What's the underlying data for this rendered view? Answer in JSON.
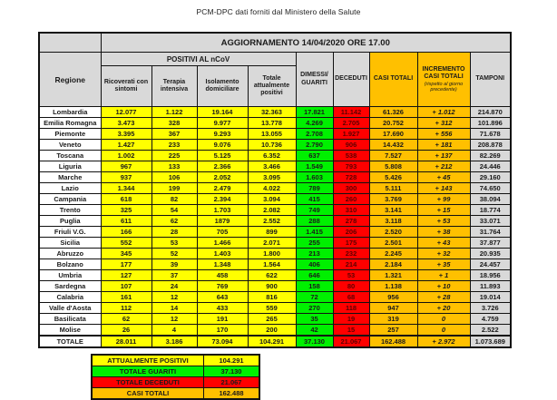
{
  "title": "PCM-DPC dati forniti dal Ministero della Salute",
  "colors": {
    "gray": "#D9D9D9",
    "yellow": "#FFFF00",
    "green": "#00F000",
    "red": "#FF0000",
    "orange": "#FFC000",
    "deceduti_text": "#5C0000"
  },
  "table": {
    "update_header": "AGGIORNAMENTO 14/04/2020 ORE 17.00",
    "headers": {
      "regione": "Regione",
      "positivi_group": "POSITIVI AL nCoV",
      "ricoverati": "Ricoverati con sintomi",
      "terapia": "Terapia intensiva",
      "isolamento": "Isolamento domiciliare",
      "totale_positivi": "Totale attualmente positivi",
      "dimessi": "DIMESSI/ GUARITI",
      "deceduti": "DECEDUTI",
      "casi_totali": "CASI TOTALI",
      "incremento": "INCREMENTO CASI TOTALI",
      "incremento_note": "(rispetto al giorno precedente)",
      "tamponi": "TAMPONI"
    },
    "rows": [
      {
        "region": "Lombardia",
        "cells": [
          "12.077",
          "1.122",
          "19.164",
          "32.363",
          "17.821",
          "11.142",
          "61.326",
          "+ 1.012",
          "214.870"
        ]
      },
      {
        "region": "Emilia Romagna",
        "cells": [
          "3.473",
          "328",
          "9.977",
          "13.778",
          "4.269",
          "2.705",
          "20.752",
          "+ 312",
          "101.896"
        ]
      },
      {
        "region": "Piemonte",
        "cells": [
          "3.395",
          "367",
          "9.293",
          "13.055",
          "2.708",
          "1.927",
          "17.690",
          "+ 556",
          "71.678"
        ]
      },
      {
        "region": "Veneto",
        "cells": [
          "1.427",
          "233",
          "9.076",
          "10.736",
          "2.790",
          "906",
          "14.432",
          "+ 181",
          "208.878"
        ]
      },
      {
        "region": "Toscana",
        "cells": [
          "1.002",
          "225",
          "5.125",
          "6.352",
          "637",
          "538",
          "7.527",
          "+ 137",
          "82.269"
        ]
      },
      {
        "region": "Liguria",
        "cells": [
          "967",
          "133",
          "2.366",
          "3.466",
          "1.549",
          "793",
          "5.808",
          "+ 212",
          "24.446"
        ]
      },
      {
        "region": "Marche",
        "cells": [
          "937",
          "106",
          "2.052",
          "3.095",
          "1.603",
          "728",
          "5.426",
          "+ 45",
          "29.160"
        ]
      },
      {
        "region": "Lazio",
        "cells": [
          "1.344",
          "199",
          "2.479",
          "4.022",
          "789",
          "300",
          "5.111",
          "+ 143",
          "74.650"
        ]
      },
      {
        "region": "Campania",
        "cells": [
          "618",
          "82",
          "2.394",
          "3.094",
          "415",
          "260",
          "3.769",
          "+ 99",
          "38.094"
        ]
      },
      {
        "region": "Trento",
        "cells": [
          "325",
          "54",
          "1.703",
          "2.082",
          "749",
          "310",
          "3.141",
          "+ 15",
          "18.774"
        ]
      },
      {
        "region": "Puglia",
        "cells": [
          "611",
          "62",
          "1879",
          "2.552",
          "288",
          "278",
          "3.118",
          "+ 53",
          "33.071"
        ]
      },
      {
        "region": "Friuli V.G.",
        "cells": [
          "166",
          "28",
          "705",
          "899",
          "1.415",
          "206",
          "2.520",
          "+ 38",
          "31.764"
        ]
      },
      {
        "region": "Sicilia",
        "cells": [
          "552",
          "53",
          "1.466",
          "2.071",
          "255",
          "175",
          "2.501",
          "+ 43",
          "37.877"
        ]
      },
      {
        "region": "Abruzzo",
        "cells": [
          "345",
          "52",
          "1.403",
          "1.800",
          "213",
          "232",
          "2.245",
          "+ 32",
          "20.935"
        ]
      },
      {
        "region": "Bolzano",
        "cells": [
          "177",
          "39",
          "1.348",
          "1.564",
          "406",
          "214",
          "2.184",
          "+ 35",
          "24.457"
        ]
      },
      {
        "region": "Umbria",
        "cells": [
          "127",
          "37",
          "458",
          "622",
          "646",
          "53",
          "1.321",
          "+ 1",
          "18.956"
        ]
      },
      {
        "region": "Sardegna",
        "cells": [
          "107",
          "24",
          "769",
          "900",
          "158",
          "80",
          "1.138",
          "+ 10",
          "11.893"
        ]
      },
      {
        "region": "Calabria",
        "cells": [
          "161",
          "12",
          "643",
          "816",
          "72",
          "68",
          "956",
          "+ 28",
          "19.014"
        ]
      },
      {
        "region": "Valle d'Aosta",
        "cells": [
          "112",
          "14",
          "433",
          "559",
          "270",
          "118",
          "947",
          "+ 20",
          "3.726"
        ]
      },
      {
        "region": "Basilicata",
        "cells": [
          "62",
          "12",
          "191",
          "265",
          "35",
          "19",
          "319",
          "0",
          "4.759"
        ]
      },
      {
        "region": "Molise",
        "cells": [
          "26",
          "4",
          "170",
          "200",
          "42",
          "15",
          "257",
          "0",
          "2.522"
        ]
      },
      {
        "region": "TOTALE",
        "cells": [
          "28.011",
          "3.186",
          "73.094",
          "104.291",
          "37.130",
          "21.067",
          "162.488",
          "+ 2.972",
          "1.073.689"
        ]
      }
    ]
  },
  "legend": {
    "rows": [
      {
        "label": "ATTUALMENTE POSITIVI",
        "value": "104.291",
        "color": "#FFFF00"
      },
      {
        "label": "TOTALE GUARITI",
        "value": "37.130",
        "color": "#00F000"
      },
      {
        "label": "TOTALE DECEDUTI",
        "value": "21.067",
        "color": "#FF0000"
      },
      {
        "label": "CASI TOTALI",
        "value": "162.488",
        "color": "#FFC000"
      }
    ]
  }
}
